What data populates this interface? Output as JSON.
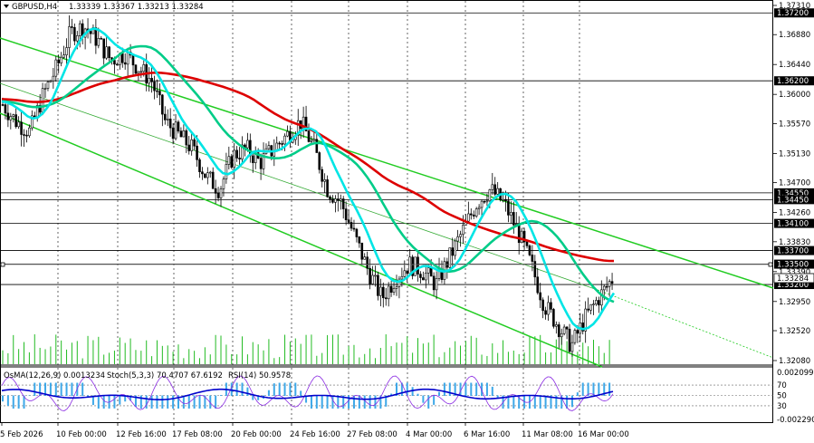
{
  "header": {
    "symbol": "GBPUSD,H4",
    "ohlc": "1.33339 1.33367 1.33213 1.33284"
  },
  "sub_header": {
    "osma": "OsMA(12,26,9) 0.0013234",
    "stoch": "Stoch(5,3,3) 70.4707 67.6192",
    "rsi": "RSI(14) 50.9578"
  },
  "colors": {
    "candle": "#000000",
    "ema_fast": "#00e5e5",
    "ema_mid": "#00cc88",
    "ema_slow": "#dd0000",
    "channel": "#22cc22",
    "level_box": "#000000",
    "level_line": "#000000",
    "volume": "#22bb22",
    "osma_hist": "#3ea8e8",
    "stoch_main": "#0000cc",
    "rsi": "#8a2be2"
  },
  "chart_data": {
    "type": "candlestick",
    "price_axis_labels": [
      "1.37310",
      "1.36880",
      "1.36440",
      "1.36000",
      "1.35570",
      "1.35130",
      "1.34700",
      "1.34260",
      "1.33830",
      "1.33390",
      "1.32950",
      "1.32520",
      "1.32080"
    ],
    "highlighted_levels": [
      "1.37200",
      "1.36200",
      "1.34550",
      "1.34450",
      "1.34100",
      "1.33700",
      "1.33500",
      "1.33200"
    ],
    "current_price": "1.33284",
    "ylim": [
      1.3208,
      1.3731
    ],
    "time_axis_labels": [
      "5 Feb 2026",
      "10 Feb 00:00",
      "12 Feb 16:00",
      "17 Feb 08:00",
      "20 Feb 00:00",
      "24 Feb 16:00",
      "27 Feb 08:00",
      "4 Mar 00:00",
      "6 Mar 16:00",
      "11 Mar 08:00",
      "16 Mar 00:00"
    ],
    "sub_axis_labels": [
      "0.002099",
      "70",
      "50",
      "30",
      "-0.002290"
    ],
    "stoch_levels": [
      70,
      50,
      30
    ],
    "series": [
      {
        "name": "GBPUSD,H4",
        "kind": "close_path",
        "values": [
          1.3585,
          1.356,
          1.3545,
          1.36,
          1.364,
          1.369,
          1.37,
          1.368,
          1.365,
          1.366,
          1.364,
          1.362,
          1.356,
          1.354,
          1.352,
          1.348,
          1.346,
          1.351,
          1.352,
          1.35,
          1.352,
          1.354,
          1.356,
          1.352,
          1.346,
          1.344,
          1.339,
          1.334,
          1.33,
          1.333,
          1.335,
          1.334,
          1.332,
          1.336,
          1.34,
          1.344,
          1.346,
          1.344,
          1.34,
          1.335,
          1.329,
          1.326,
          1.323,
          1.327,
          1.33,
          1.3328
        ]
      }
    ]
  }
}
